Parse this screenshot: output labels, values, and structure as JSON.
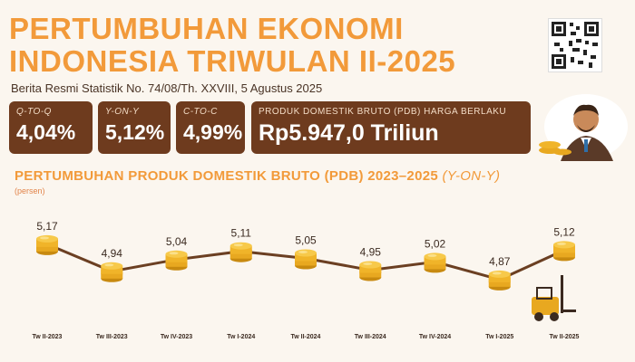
{
  "header": {
    "title_line1": "PERTUMBUHAN EKONOMI",
    "title_line2": "INDONESIA TRIWULAN II-2025",
    "subtitle": "Berita Resmi Statistik No. 74/08/Th. XXVIII, 5 Agustus 2025"
  },
  "stats": {
    "qtoq": {
      "label": "Q-TO-Q",
      "value": "4,04%"
    },
    "yony": {
      "label": "Y-ON-Y",
      "value": "5,12%"
    },
    "ctoc": {
      "label": "C-TO-C",
      "value": "4,99%"
    },
    "pdb": {
      "label": "PRODUK DOMESTIK BRUTO (PDB) HARGA BERLAKU",
      "value": "Rp5.947,0 Triliun"
    }
  },
  "icons": {
    "qr": "qr-code-icon",
    "avatar": "businessman-icon",
    "coin": "coin-stack-icon",
    "forklift": "forklift-icon"
  },
  "colors": {
    "accent": "#f29a3a",
    "box": "#6e3b1e",
    "line": "#6b3f22",
    "coin": "#f0b429"
  },
  "chart_data": {
    "type": "line",
    "title_main": "PERTUMBUHAN PRODUK DOMESTIK BRUTO (PDB) 2023–2025",
    "title_suffix": "(Y-ON-Y)",
    "ylabel": "(persen)",
    "categories": [
      "Tw II-2023",
      "Tw III-2023",
      "Tw IV-2023",
      "Tw I-2024",
      "Tw II-2024",
      "Tw III-2024",
      "Tw IV-2024",
      "Tw I-2025",
      "Tw II-2025"
    ],
    "values": [
      5.17,
      4.94,
      5.04,
      5.11,
      5.05,
      4.95,
      5.02,
      4.87,
      5.12
    ],
    "value_labels": [
      "5,17",
      "4,94",
      "5,04",
      "5,11",
      "5,05",
      "4,95",
      "5,02",
      "4,87",
      "5,12"
    ],
    "ylim": [
      4.6,
      5.4
    ],
    "grid": false,
    "legend": "none"
  }
}
